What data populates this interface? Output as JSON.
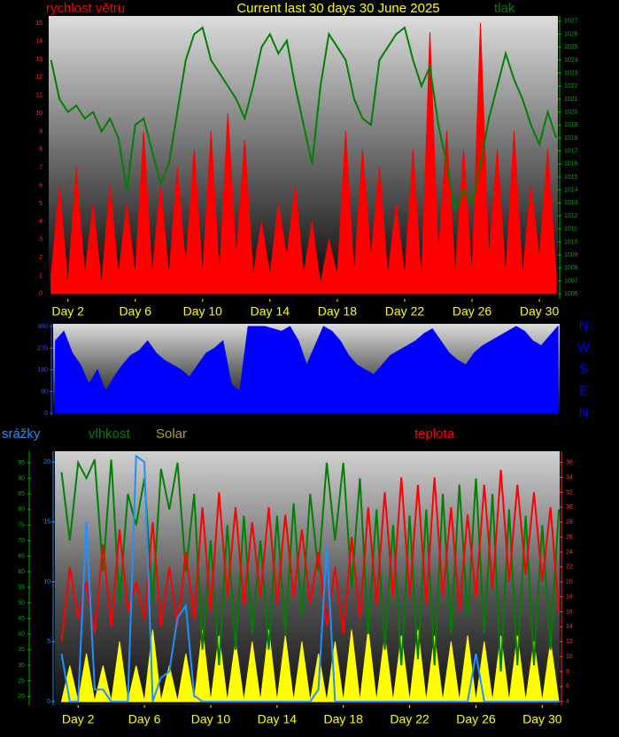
{
  "chart_data": [
    {
      "type": "line",
      "title": "Current last 30 days 30 June 2025",
      "x": [
        1,
        1.5,
        2,
        2.5,
        3,
        3.5,
        4,
        4.5,
        5,
        5.5,
        6,
        6.5,
        7,
        7.5,
        8,
        8.5,
        9,
        9.5,
        10,
        10.5,
        11,
        11.5,
        12,
        12.5,
        13,
        13.5,
        14,
        14.5,
        15,
        15.5,
        16,
        16.5,
        17,
        17.5,
        18,
        18.5,
        19,
        19.5,
        20,
        20.5,
        21,
        21.5,
        22,
        22.5,
        23,
        23.5,
        24,
        24.5,
        25,
        25.5,
        26,
        26.5,
        27,
        27.5,
        28,
        28.5,
        29,
        29.5,
        30,
        30.5,
        31
      ],
      "xlim": [
        0.86,
        31.1
      ],
      "xticks": [
        {
          "value": 2,
          "label": "Day 2"
        },
        {
          "value": 6,
          "label": "Day 6"
        },
        {
          "value": 10,
          "label": "Day 10"
        },
        {
          "value": 14,
          "label": "Day 14"
        },
        {
          "value": 18,
          "label": "Day 18"
        },
        {
          "value": 22,
          "label": "Day 22"
        },
        {
          "value": 26,
          "label": "Day 26"
        },
        {
          "value": 30,
          "label": "Day 30"
        }
      ],
      "ylim": [
        -0.3,
        15.4
      ],
      "yticks": [
        0,
        1,
        2,
        3,
        4,
        5,
        6,
        7,
        8,
        9,
        10,
        11,
        12,
        13,
        14,
        15
      ],
      "y2lim": [
        1005.6,
        1027.4
      ],
      "y2ticks": [
        1006,
        1007,
        1008,
        1009,
        1010,
        1011,
        1012,
        1013,
        1014,
        1015,
        1016,
        1017,
        1018,
        1019,
        1020,
        1021,
        1022,
        1023,
        1024,
        1025,
        1026,
        1027
      ],
      "series": [
        {
          "name": "rychlost větru",
          "color": "#ff0000",
          "style": "area",
          "axis": "y",
          "values": [
            1,
            6,
            0.5,
            7,
            1,
            5,
            0.5,
            6,
            1,
            5,
            1,
            9,
            1,
            6,
            1,
            7,
            1.5,
            8,
            1,
            9,
            1,
            10,
            2,
            8.5,
            1,
            4,
            1,
            5,
            2,
            6,
            1,
            4,
            0.5,
            3,
            1,
            9,
            1,
            8,
            2,
            7,
            1,
            5,
            1,
            8,
            0.5,
            14.5,
            2,
            9,
            1,
            8,
            1,
            15,
            2,
            8,
            1,
            9,
            1,
            6,
            2,
            8,
            1
          ]
        },
        {
          "name": "tlak",
          "color": "#008000",
          "style": "line",
          "axis": "y2",
          "values": [
            1024,
            1021,
            1020,
            1020.5,
            1019.5,
            1020,
            1018.5,
            1019.5,
            1018,
            1014,
            1019,
            1019.5,
            1017,
            1014.5,
            1016,
            1020,
            1024,
            1026,
            1026.5,
            1024,
            1023,
            1022,
            1021,
            1019.5,
            1022,
            1025,
            1026,
            1024.5,
            1025.5,
            1022,
            1019,
            1016,
            1022,
            1026,
            1025,
            1024,
            1021,
            1019.5,
            1019,
            1024,
            1025,
            1026,
            1026.5,
            1024,
            1022,
            1023.5,
            1019,
            1016,
            1012.5,
            1014,
            1013,
            1016,
            1019.5,
            1022,
            1024.5,
            1022.5,
            1021,
            1019,
            1017.5,
            1020,
            1018
          ]
        }
      ]
    },
    {
      "type": "area",
      "x": [
        1,
        1.5,
        2,
        2.5,
        3,
        3.5,
        4,
        4.5,
        5,
        5.5,
        6,
        6.5,
        7,
        7.5,
        8,
        8.5,
        9,
        9.5,
        10,
        10.5,
        11,
        11.5,
        12,
        12.5,
        13,
        13.5,
        14,
        14.5,
        15,
        15.5,
        16,
        16.5,
        17,
        17.5,
        18,
        18.5,
        19,
        19.5,
        20,
        20.5,
        21,
        21.5,
        22,
        22.5,
        23,
        23.5,
        24,
        24.5,
        25,
        25.5,
        26,
        26.5,
        27,
        27.5,
        28,
        28.5,
        29,
        29.5,
        30,
        30.5,
        31
      ],
      "xlim": [
        0.86,
        31.1
      ],
      "ylim": [
        -11,
        371
      ],
      "yticks": [
        0,
        90,
        180,
        270,
        360
      ],
      "y2lim": [
        -11,
        371
      ],
      "y2ticks": [
        {
          "value": 360,
          "label": "N"
        },
        {
          "value": 270,
          "label": "W"
        },
        {
          "value": 180,
          "label": "S"
        },
        {
          "value": 90,
          "label": "E"
        },
        {
          "value": 0,
          "label": "N"
        }
      ],
      "series": [
        {
          "color": "#0000ff",
          "style": "area",
          "axis": "y",
          "values": [
            300,
            340,
            250,
            200,
            120,
            180,
            90,
            150,
            200,
            240,
            260,
            300,
            250,
            220,
            200,
            180,
            150,
            200,
            250,
            270,
            300,
            120,
            90,
            360,
            360,
            360,
            350,
            340,
            360,
            300,
            200,
            280,
            360,
            340,
            300,
            240,
            200,
            180,
            160,
            200,
            240,
            260,
            280,
            300,
            330,
            350,
            300,
            250,
            220,
            200,
            250,
            280,
            300,
            320,
            340,
            360,
            340,
            300,
            280,
            320,
            360
          ]
        }
      ]
    },
    {
      "type": "line",
      "x": [
        1,
        1.5,
        2,
        2.5,
        3,
        3.5,
        4,
        4.5,
        5,
        5.5,
        6,
        6.5,
        7,
        7.5,
        8,
        8.5,
        9,
        9.5,
        10,
        10.5,
        11,
        11.5,
        12,
        12.5,
        13,
        13.5,
        14,
        14.5,
        15,
        15.5,
        16,
        16.5,
        17,
        17.5,
        18,
        18.5,
        19,
        19.5,
        20,
        20.5,
        21,
        21.5,
        22,
        22.5,
        23,
        23.5,
        24,
        24.5,
        25,
        25.5,
        26,
        26.5,
        27,
        27.5,
        28,
        28.5,
        29,
        29.5,
        30,
        30.5,
        31
      ],
      "xlim": [
        0.6,
        31.05
      ],
      "xticks": [
        {
          "value": 2,
          "label": "Day 2"
        },
        {
          "value": 6,
          "label": "Day 6"
        },
        {
          "value": 10,
          "label": "Day 10"
        },
        {
          "value": 14,
          "label": "Day 14"
        },
        {
          "value": 18,
          "label": "Day 18"
        },
        {
          "value": 22,
          "label": "Day 22"
        },
        {
          "value": 26,
          "label": "Day 26"
        },
        {
          "value": 30,
          "label": "Day 30"
        }
      ],
      "ylim": [
        -0.3,
        20.9
      ],
      "yticks": [
        0,
        5,
        10,
        15,
        20
      ],
      "y2lim": [
        3.5,
        37.5
      ],
      "y2ticks": [
        4,
        6,
        8,
        10,
        12,
        14,
        16,
        18,
        20,
        22,
        24,
        26,
        28,
        30,
        32,
        34,
        36
      ],
      "y3lim": [
        17.2,
        98.7
      ],
      "y3ticks": [
        20,
        25,
        30,
        35,
        40,
        45,
        50,
        55,
        60,
        65,
        70,
        75,
        80,
        85,
        90,
        95
      ],
      "series": [
        {
          "name": "Solar",
          "color": "#ffff00",
          "style": "area",
          "axis": "y",
          "values": [
            0,
            3,
            0,
            4,
            0,
            3,
            0,
            5,
            0,
            3,
            0,
            6,
            0,
            3,
            0,
            4,
            0,
            6,
            0,
            5.5,
            0,
            5,
            0,
            5,
            0,
            6,
            0,
            5.5,
            0,
            5,
            0,
            4,
            0,
            5,
            0,
            6,
            0,
            6,
            0,
            5.5,
            0,
            5.5,
            0,
            6,
            0,
            5.5,
            0,
            5,
            0,
            5.5,
            0,
            5,
            0,
            5.5,
            0,
            5.5,
            0,
            5,
            0,
            5,
            0
          ]
        },
        {
          "name": "vlhkost",
          "color": "#008000",
          "style": "line",
          "axis": "y3",
          "values": [
            92,
            70,
            95,
            90,
            96,
            60,
            96,
            50,
            85,
            75,
            90,
            50,
            93,
            80,
            95,
            60,
            85,
            35,
            70,
            30,
            75,
            35,
            78,
            40,
            70,
            35,
            78,
            40,
            82,
            45,
            85,
            60,
            95,
            70,
            95,
            55,
            90,
            40,
            80,
            35,
            75,
            30,
            78,
            32,
            80,
            30,
            85,
            40,
            88,
            45,
            90,
            40,
            85,
            28,
            80,
            30,
            78,
            30,
            75,
            35,
            80
          ]
        },
        {
          "name": "teplota",
          "color": "#ff0000",
          "style": "line",
          "axis": "y2",
          "values": [
            12,
            22,
            15,
            20,
            13,
            25,
            14,
            27,
            16,
            20,
            15,
            28,
            14,
            22,
            14,
            24,
            15,
            30,
            16,
            32,
            18,
            30,
            17,
            28,
            18,
            30,
            17,
            29,
            18,
            27,
            17,
            24,
            14,
            22,
            13,
            26,
            15,
            30,
            17,
            32,
            18,
            34,
            18,
            33,
            17,
            34,
            18,
            30,
            16,
            29,
            18,
            33,
            19,
            35,
            20,
            33,
            21,
            32,
            20,
            30,
            16
          ]
        },
        {
          "name": "srážky",
          "color": "#1e90ff",
          "style": "line",
          "axis": "y",
          "values": [
            4,
            0,
            0,
            15,
            1,
            1,
            0,
            0,
            0,
            20.5,
            20,
            0,
            2,
            2.5,
            7,
            8,
            0.5,
            0,
            0,
            0,
            0,
            0,
            0,
            0,
            0,
            0,
            0,
            0,
            0,
            0,
            0,
            1,
            13,
            0,
            0,
            0,
            0,
            0,
            0,
            0,
            0,
            0,
            0,
            0,
            0,
            0,
            0,
            0,
            0,
            0,
            4,
            0,
            0,
            0,
            0,
            0,
            0,
            0,
            0,
            0,
            0
          ]
        }
      ]
    }
  ]
}
